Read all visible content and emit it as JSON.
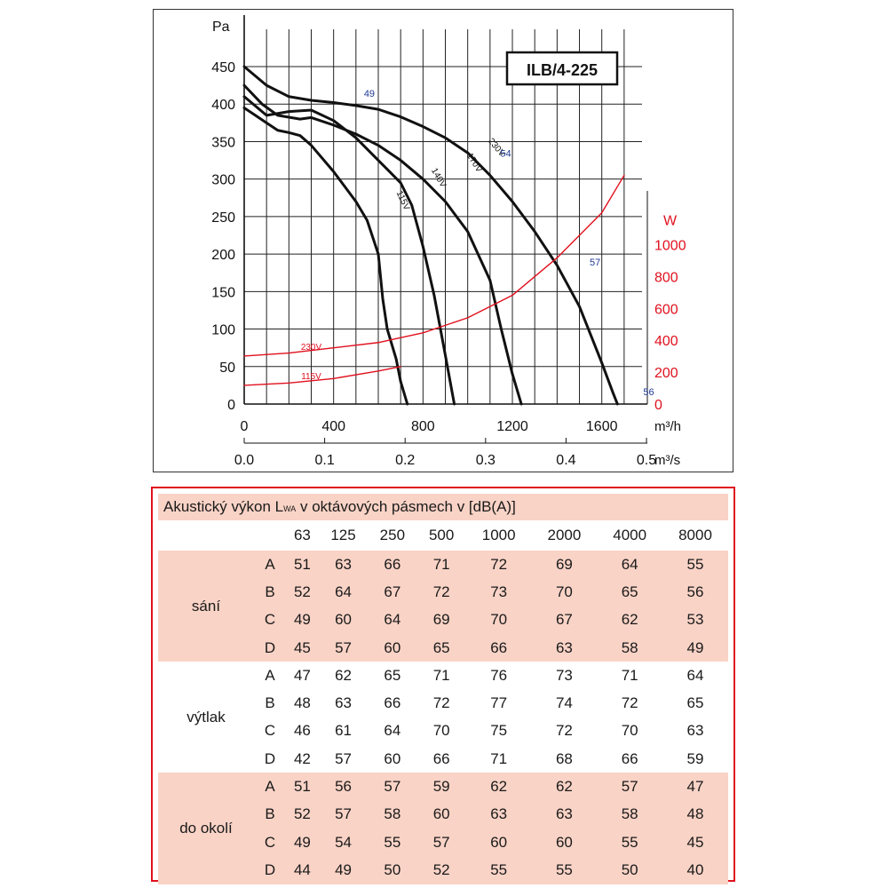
{
  "chart_data": {
    "type": "line",
    "title": "ILB/4-225",
    "y_unit": "Pa",
    "ylim": [
      0,
      450
    ],
    "y_ticks": [
      "0",
      "50",
      "100",
      "150",
      "200",
      "250",
      "300",
      "350",
      "400",
      "450"
    ],
    "x_unit": "m³/h",
    "xlim": [
      0,
      2000
    ],
    "x_tick_labels": [
      "0",
      "400",
      "800",
      "1200",
      "1600"
    ],
    "x2_unit": "m³/s",
    "x2_tick_labels": [
      "0.0",
      "0.1",
      "0.2",
      "0.3",
      "0.4",
      "0.5"
    ],
    "y2_unit": "W",
    "y2_tick_labels": [
      "0",
      "200",
      "400",
      "600",
      "800",
      "1000"
    ],
    "grid": true,
    "series": [
      {
        "name": "230V",
        "x": [
          0,
          100,
          200,
          300,
          400,
          500,
          600,
          700,
          800,
          900,
          1000,
          1100,
          1200,
          1300,
          1400,
          1500,
          1600,
          1650,
          1670
        ],
        "y": [
          450,
          425,
          410,
          405,
          402,
          398,
          393,
          383,
          370,
          355,
          335,
          305,
          270,
          230,
          185,
          130,
          55,
          15,
          0
        ]
      },
      {
        "name": "170V",
        "x": [
          0,
          80,
          150,
          250,
          300,
          400,
          500,
          600,
          700,
          800,
          900,
          1000,
          1100,
          1150,
          1200,
          1240
        ],
        "y": [
          425,
          400,
          385,
          380,
          382,
          372,
          360,
          345,
          325,
          300,
          270,
          230,
          165,
          100,
          40,
          0
        ]
      },
      {
        "name": "140V",
        "x": [
          0,
          100,
          200,
          300,
          400,
          500,
          600,
          650,
          700,
          750,
          800,
          850,
          900,
          940
        ],
        "y": [
          410,
          385,
          390,
          392,
          378,
          355,
          325,
          310,
          295,
          265,
          210,
          145,
          65,
          0
        ]
      },
      {
        "name": "115V",
        "x": [
          0,
          100,
          150,
          200,
          250,
          300,
          400,
          500,
          550,
          600,
          620,
          640,
          680,
          700,
          730
        ],
        "y": [
          395,
          375,
          365,
          362,
          358,
          345,
          310,
          270,
          245,
          200,
          140,
          100,
          60,
          30,
          0
        ]
      },
      {
        "name": "230V",
        "unit": "W",
        "x": [
          0,
          200,
          400,
          600,
          800,
          1000,
          1200,
          1400,
          1600,
          1700
        ],
        "y": [
          64,
          68,
          75,
          82,
          95,
          115,
          145,
          195,
          255,
          305
        ]
      },
      {
        "name": "115V",
        "unit": "W",
        "x": [
          0,
          200,
          400,
          600,
          700
        ],
        "y": [
          25,
          28,
          34,
          44,
          50
        ]
      }
    ],
    "annotations": [
      {
        "text": "49",
        "x": 560,
        "y": 410
      },
      {
        "text": "54",
        "x": 1170,
        "y": 330
      },
      {
        "text": "57",
        "x": 1570,
        "y": 185
      },
      {
        "text": "56",
        "x": 1810,
        "y": 12
      }
    ]
  },
  "table": {
    "title_main": "Akustický výkon L",
    "title_sub": "WA",
    "title_rest": " v oktávových pásmech v [dB(A)]",
    "bands": [
      "63",
      "125",
      "250",
      "500",
      "1000",
      "2000",
      "4000",
      "8000"
    ],
    "groups": [
      {
        "name": "sání",
        "rows": [
          {
            "label": "A",
            "values": [
              "51",
              "63",
              "66",
              "71",
              "72",
              "69",
              "64",
              "55"
            ]
          },
          {
            "label": "B",
            "values": [
              "52",
              "64",
              "67",
              "72",
              "73",
              "70",
              "65",
              "56"
            ]
          },
          {
            "label": "C",
            "values": [
              "49",
              "60",
              "64",
              "69",
              "70",
              "67",
              "62",
              "53"
            ]
          },
          {
            "label": "D",
            "values": [
              "45",
              "57",
              "60",
              "65",
              "66",
              "63",
              "58",
              "49"
            ]
          }
        ]
      },
      {
        "name": "výtlak",
        "rows": [
          {
            "label": "A",
            "values": [
              "47",
              "62",
              "65",
              "71",
              "76",
              "73",
              "71",
              "64"
            ]
          },
          {
            "label": "B",
            "values": [
              "48",
              "63",
              "66",
              "72",
              "77",
              "74",
              "72",
              "65"
            ]
          },
          {
            "label": "C",
            "values": [
              "46",
              "61",
              "64",
              "70",
              "75",
              "72",
              "70",
              "63"
            ]
          },
          {
            "label": "D",
            "values": [
              "42",
              "57",
              "60",
              "66",
              "71",
              "68",
              "66",
              "59"
            ]
          }
        ]
      },
      {
        "name": "do okolí",
        "rows": [
          {
            "label": "A",
            "values": [
              "51",
              "56",
              "57",
              "59",
              "62",
              "62",
              "57",
              "47"
            ]
          },
          {
            "label": "B",
            "values": [
              "52",
              "57",
              "58",
              "60",
              "63",
              "63",
              "58",
              "48"
            ]
          },
          {
            "label": "C",
            "values": [
              "49",
              "54",
              "55",
              "57",
              "60",
              "60",
              "55",
              "45"
            ]
          },
          {
            "label": "D",
            "values": [
              "44",
              "49",
              "50",
              "52",
              "55",
              "55",
              "50",
              "40"
            ]
          }
        ]
      }
    ]
  },
  "colors": {
    "curve": "#111111",
    "power": "#e0101e",
    "note": "#1f3a93",
    "table_border": "#e0101e",
    "table_fill": "#f9d3c6"
  }
}
